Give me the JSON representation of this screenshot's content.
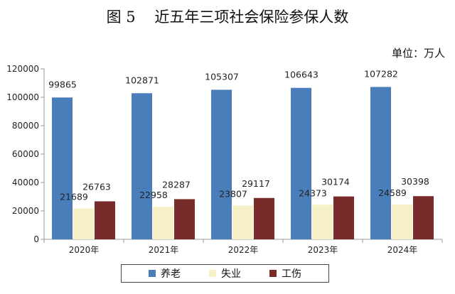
{
  "title": "图 5    近五年三项社会保险参保人数",
  "unit": "单位：万人",
  "colors": {
    "pension": "#4a7ebb",
    "unemployment": "#f5f0c8",
    "injury": "#772c2a"
  },
  "chart_data": {
    "type": "bar",
    "title": "图 5    近五年三项社会保险参保人数",
    "categories": [
      "2020年",
      "2021年",
      "2022年",
      "2023年",
      "2024年"
    ],
    "series": [
      {
        "name": "养老",
        "values": [
          99865,
          102871,
          105307,
          106643,
          107282
        ]
      },
      {
        "name": "失业",
        "values": [
          21689,
          22958,
          23807,
          24373,
          24589
        ]
      },
      {
        "name": "工伤",
        "values": [
          26763,
          28287,
          29117,
          30174,
          30398
        ]
      }
    ],
    "ylim": [
      0,
      120000
    ],
    "yticks": [
      0,
      20000,
      40000,
      60000,
      80000,
      100000,
      120000
    ],
    "grid": false,
    "legend": "bottom-center"
  }
}
